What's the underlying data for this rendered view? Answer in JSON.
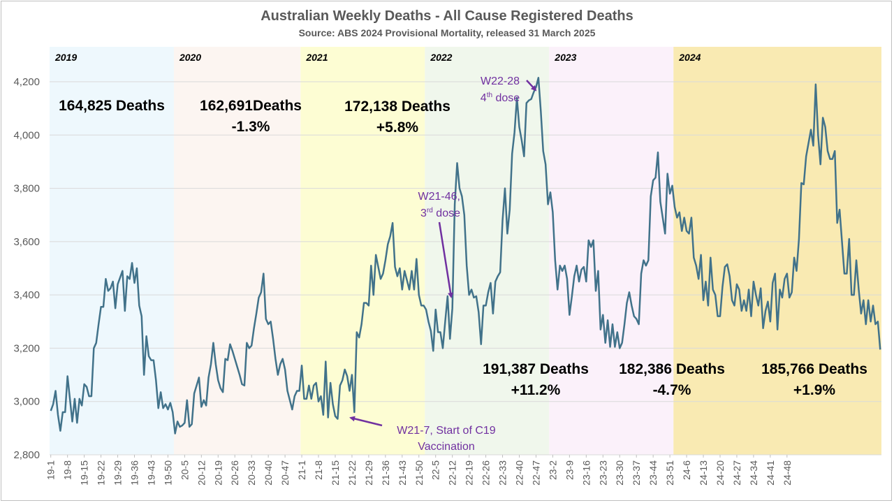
{
  "chart_data": {
    "type": "line",
    "title": "Australian Weekly Deaths - All Cause Registered Deaths",
    "subtitle": "Source: ABS 2024 Provisional Mortality, released 31 March 2025",
    "ylim": [
      2800,
      4300
    ],
    "yticks": [
      "2,800",
      "3,000",
      "3,200",
      "3,400",
      "3,600",
      "3,800",
      "4,000",
      "4,200"
    ],
    "ytick_values": [
      2800,
      3000,
      3200,
      3400,
      3600,
      3800,
      4000,
      4200
    ],
    "xtick_labels": [
      "19-1",
      "19-8",
      "19-15",
      "19-22",
      "19-29",
      "19-36",
      "19-43",
      "19-50",
      "20-5",
      "20-12",
      "20-19",
      "20-26",
      "20-33",
      "20-40",
      "20-47",
      "21-1",
      "21-8",
      "21-15",
      "21-22",
      "21-29",
      "21-36",
      "21-43",
      "21-50",
      "22-5",
      "22-12",
      "22-19",
      "22-26",
      "22-33",
      "22-40",
      "22-47",
      "23-2",
      "23-9",
      "23-16",
      "23-23",
      "23-30",
      "23-37",
      "23-44",
      "23-51",
      "24-6",
      "24-13",
      "24-20",
      "24-27",
      "24-34",
      "24-41",
      "24-48"
    ],
    "grid": "horizontal",
    "line_color": "#41728a",
    "series": [
      {
        "values": [
          2965,
          2990,
          3040,
          2950,
          2890,
          2960,
          2960,
          3095,
          3010,
          2925,
          3010,
          2920,
          3010,
          2985,
          3065,
          3055,
          3020,
          3020,
          3200,
          3220,
          3290,
          3355,
          3355,
          3460,
          3415,
          3425,
          3450,
          3350,
          3440,
          3465,
          3490,
          3340,
          3470,
          3460,
          3520,
          3445,
          3500,
          3360,
          3320,
          3100,
          3245,
          3170,
          3155,
          3155,
          3080,
          2975,
          3035,
          2975,
          2990,
          2970,
          2995,
          2960,
          2880,
          2925,
          2905,
          2910,
          2920,
          3005,
          2905,
          2915,
          3030,
          3060,
          3090,
          2980,
          3005,
          2985,
          3090,
          3140,
          3220,
          3140,
          3080,
          3050,
          3035,
          3160,
          3155,
          3215,
          3190,
          3160,
          3130,
          3100,
          3065,
          3060,
          3220,
          3200,
          3210,
          3275,
          3330,
          3390,
          3410,
          3480,
          3310,
          3290,
          3300,
          3235,
          3160,
          3100,
          3140,
          3160,
          3120,
          3040,
          3005,
          2970,
          3020,
          3040,
          3040,
          3135,
          3010,
          3010,
          3060,
          3010,
          3060,
          3070,
          3000,
          3020,
          2950,
          3150,
          2940,
          3070,
          2990,
          2945,
          2935,
          3060,
          3080,
          3120,
          3095,
          3040,
          3100,
          2960,
          3260,
          3240,
          3290,
          3370,
          3370,
          3360,
          3510,
          3400,
          3550,
          3505,
          3460,
          3480,
          3530,
          3590,
          3620,
          3670,
          3505,
          3470,
          3500,
          3420,
          3490,
          3455,
          3420,
          3490,
          3420,
          3535,
          3400,
          3360,
          3360,
          3345,
          3300,
          3265,
          3190,
          3345,
          3260,
          3260,
          3200,
          3300,
          3395,
          3235,
          3350,
          3740,
          3895,
          3800,
          3770,
          3700,
          3510,
          3400,
          3420,
          3390,
          3395,
          3335,
          3215,
          3360,
          3360,
          3410,
          3445,
          3330,
          3450,
          3470,
          3485,
          3680,
          3800,
          3630,
          3720,
          3930,
          4010,
          4140,
          4030,
          3980,
          3920,
          4120,
          4130,
          4135,
          4160,
          4180,
          4215,
          4090,
          3940,
          3890,
          3740,
          3785,
          3710,
          3530,
          3420,
          3510,
          3490,
          3510,
          3460,
          3325,
          3395,
          3470,
          3510,
          3450,
          3495,
          3505,
          3450,
          3605,
          3580,
          3605,
          3415,
          3490,
          3270,
          3325,
          3220,
          3305,
          3205,
          3290,
          3205,
          3260,
          3200,
          3220,
          3290,
          3370,
          3410,
          3360,
          3320,
          3310,
          3290,
          3480,
          3530,
          3510,
          3530,
          3770,
          3830,
          3840,
          3935,
          3750,
          3690,
          3630,
          3855,
          3780,
          3810,
          3730,
          3690,
          3710,
          3640,
          3690,
          3640,
          3630,
          3690,
          3540,
          3510,
          3460,
          3550,
          3380,
          3450,
          3360,
          3540,
          3420,
          3400,
          3320,
          3320,
          3430,
          3505,
          3515,
          3470,
          3380,
          3360,
          3440,
          3420,
          3340,
          3380,
          3340,
          3420,
          3320,
          3450,
          3400,
          3360,
          3425,
          3275,
          3340,
          3375,
          3300,
          3445,
          3480,
          3270,
          3420,
          3390,
          3460,
          3480,
          3390,
          3410,
          3540,
          3490,
          3610,
          3820,
          3815,
          3920,
          3970,
          4020,
          3960,
          4190,
          4000,
          3890,
          4065,
          4030,
          3940,
          3910,
          3910,
          3940,
          3670,
          3720,
          3600,
          3480,
          3480,
          3610,
          3400,
          3400,
          3530,
          3420,
          3330,
          3380,
          3290,
          3380,
          3300,
          3360,
          3290,
          3300,
          3195
        ]
      }
    ]
  },
  "years": [
    {
      "label": "2019",
      "color": "#eef8fd"
    },
    {
      "label": "2020",
      "color": "#fcf5f1"
    },
    {
      "label": "2021",
      "color": "#fdfdd3"
    },
    {
      "label": "2022",
      "color": "#f0f7ec"
    },
    {
      "label": "2023",
      "color": "#fbf1fa"
    },
    {
      "label": "2024",
      "color": "#f9eab2"
    }
  ],
  "deaths": {
    "y2019": {
      "line1": "164,825 Deaths"
    },
    "y2020": {
      "line1": "162,691Deaths",
      "line2": "-1.3%"
    },
    "y2021": {
      "line1": "172,138 Deaths",
      "line2": "+5.8%"
    },
    "y2022": {
      "line1": "191,387 Deaths",
      "line2": "+11.2%"
    },
    "y2023": {
      "line1": "182,386 Deaths",
      "line2": "-4.7%"
    },
    "y2024": {
      "line1": "185,766 Deaths",
      "line2": "+1.9%"
    }
  },
  "annotations": {
    "w22_28": {
      "line1": "W22-28",
      "line2_num": "4",
      "line2_sup": "th",
      "line2_rest": " dose"
    },
    "w21_46": {
      "line1": "W21-46,",
      "line2_num": "3",
      "line2_sup": "rd",
      "line2_rest": " dose"
    },
    "w21_7": {
      "line1": "W21-7, Start of C19",
      "line2": "Vaccination"
    },
    "arrow_color": "#7030a0"
  }
}
